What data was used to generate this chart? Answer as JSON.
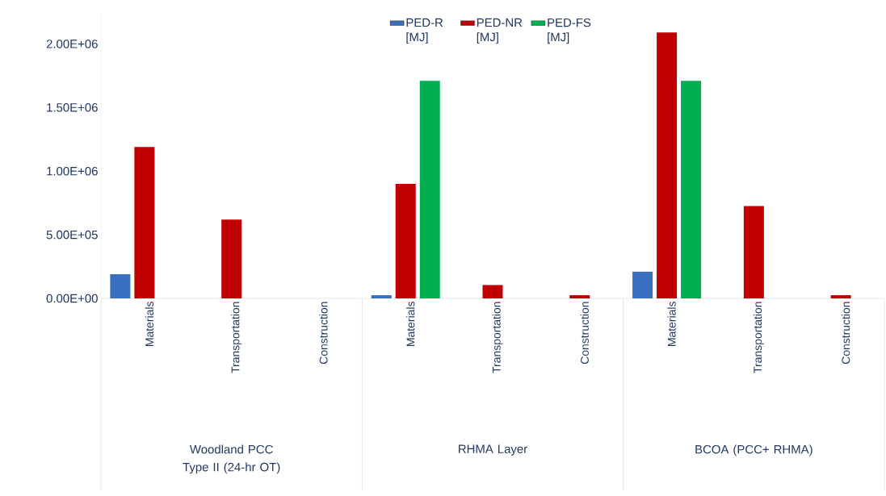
{
  "chart_data": {
    "type": "bar",
    "categories": [
      "Materials",
      "Transportation",
      "Construction",
      "Materials",
      "Transportation",
      "Construction",
      "Materials",
      "Transportation",
      "Construction"
    ],
    "series": [
      {
        "name": "PED-R [MJ]",
        "color": "#3a6fbf",
        "values": [
          190000,
          0,
          0,
          25000,
          0,
          0,
          210000,
          0,
          0
        ]
      },
      {
        "name": "PED-NR [MJ]",
        "color": "#c00000",
        "values": [
          1190000,
          620000,
          0,
          900000,
          105000,
          25000,
          2090000,
          725000,
          25000
        ]
      },
      {
        "name": "PED-FS [MJ]",
        "color": "#00b050",
        "values": [
          0,
          0,
          0,
          1710000,
          0,
          0,
          1710000,
          0,
          0
        ]
      }
    ],
    "ylim": [
      0,
      2250000
    ],
    "yticks": [
      {
        "value": 0,
        "label": "0.00E+00"
      },
      {
        "value": 500000,
        "label": "5.00E+05"
      },
      {
        "value": 1000000,
        "label": "1.00E+06"
      },
      {
        "value": 1500000,
        "label": "1.50E+06"
      },
      {
        "value": 2000000,
        "label": "2.00E+06"
      }
    ],
    "legend": "top",
    "annotations": [
      "Woodland PCC Type II (24-hr OT)",
      "RHMA Layer",
      "BCOA (PCC+ RHMA)"
    ]
  }
}
